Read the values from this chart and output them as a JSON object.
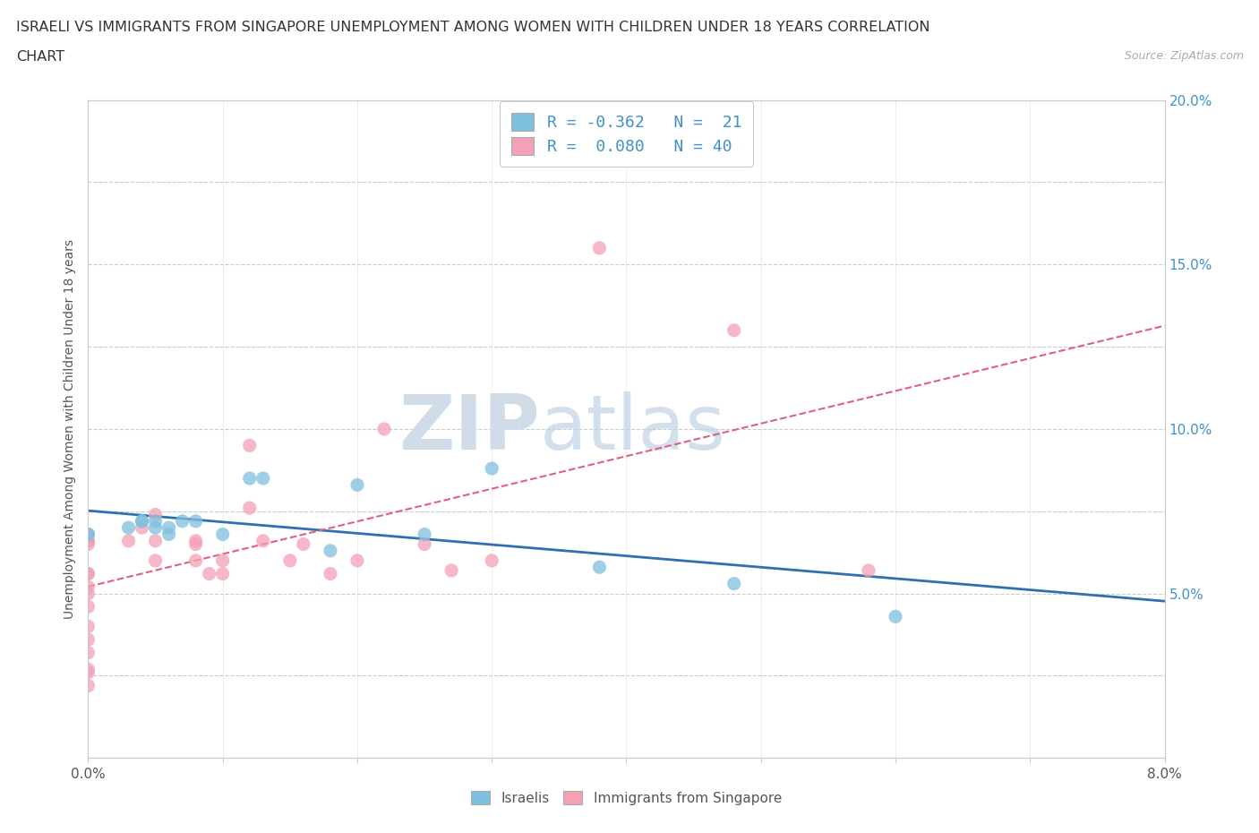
{
  "title_line1": "ISRAELI VS IMMIGRANTS FROM SINGAPORE UNEMPLOYMENT AMONG WOMEN WITH CHILDREN UNDER 18 YEARS CORRELATION",
  "title_line2": "CHART",
  "source_text": "Source: ZipAtlas.com",
  "ylabel": "Unemployment Among Women with Children Under 18 years",
  "xlim": [
    0.0,
    0.08
  ],
  "ylim": [
    0.0,
    0.2
  ],
  "israelis_color": "#7fbfdf",
  "singapore_color": "#f4a0b5",
  "trendline_israelis_color": "#3070b0",
  "trendline_singapore_color": "#e06080",
  "watermark_zip": "ZIP",
  "watermark_atlas": "atlas",
  "israelis_x": [
    0.0,
    0.0,
    0.003,
    0.004,
    0.004,
    0.005,
    0.005,
    0.006,
    0.006,
    0.007,
    0.008,
    0.01,
    0.012,
    0.013,
    0.018,
    0.02,
    0.025,
    0.03,
    0.038,
    0.048,
    0.06
  ],
  "israelis_y": [
    0.068,
    0.068,
    0.07,
    0.072,
    0.072,
    0.072,
    0.07,
    0.07,
    0.068,
    0.072,
    0.072,
    0.068,
    0.085,
    0.085,
    0.063,
    0.083,
    0.068,
    0.088,
    0.058,
    0.053,
    0.043
  ],
  "singapore_x": [
    0.0,
    0.0,
    0.0,
    0.0,
    0.0,
    0.0,
    0.0,
    0.0,
    0.0,
    0.0,
    0.0,
    0.0,
    0.0,
    0.0,
    0.0,
    0.003,
    0.004,
    0.005,
    0.005,
    0.005,
    0.008,
    0.008,
    0.008,
    0.009,
    0.01,
    0.01,
    0.012,
    0.012,
    0.013,
    0.015,
    0.016,
    0.018,
    0.02,
    0.022,
    0.025,
    0.027,
    0.03,
    0.038,
    0.048,
    0.058
  ],
  "singapore_y": [
    0.066,
    0.066,
    0.065,
    0.068,
    0.056,
    0.056,
    0.052,
    0.05,
    0.046,
    0.04,
    0.036,
    0.032,
    0.027,
    0.026,
    0.022,
    0.066,
    0.07,
    0.074,
    0.066,
    0.06,
    0.066,
    0.065,
    0.06,
    0.056,
    0.056,
    0.06,
    0.076,
    0.095,
    0.066,
    0.06,
    0.065,
    0.056,
    0.06,
    0.1,
    0.065,
    0.057,
    0.06,
    0.155,
    0.13,
    0.057
  ]
}
